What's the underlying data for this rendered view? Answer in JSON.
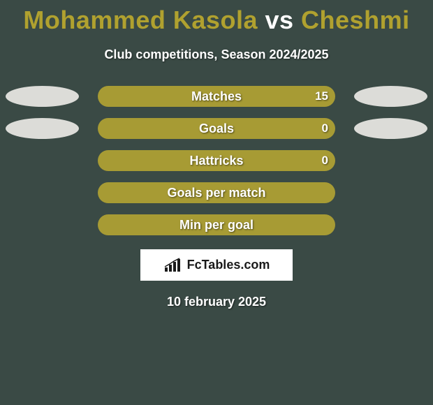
{
  "title": {
    "player1": "Mohammed Kasola",
    "vs": "vs",
    "player2": "Cheshmi",
    "player1_color": "#b0a12f",
    "vs_color": "#ffffff",
    "player2_color": "#b0a12f",
    "fontsize": 36
  },
  "subtitle": "Club competitions, Season 2024/2025",
  "bar_colors": {
    "left": "#a79b34",
    "right": "#a79b34",
    "bg": "#3a4a45"
  },
  "badge_color": "#dcdcd8",
  "rows": [
    {
      "label": "Matches",
      "left_val": "",
      "right_val": "15",
      "left_pct": 0,
      "right_pct": 100,
      "show_left_badge": true,
      "show_right_badge": true
    },
    {
      "label": "Goals",
      "left_val": "",
      "right_val": "0",
      "left_pct": 50,
      "right_pct": 50,
      "show_left_badge": true,
      "show_right_badge": true
    },
    {
      "label": "Hattricks",
      "left_val": "",
      "right_val": "0",
      "left_pct": 50,
      "right_pct": 50,
      "show_left_badge": false,
      "show_right_badge": false
    },
    {
      "label": "Goals per match",
      "left_val": "",
      "right_val": "",
      "left_pct": 50,
      "right_pct": 50,
      "show_left_badge": false,
      "show_right_badge": false
    },
    {
      "label": "Min per goal",
      "left_val": "",
      "right_val": "",
      "left_pct": 50,
      "right_pct": 50,
      "show_left_badge": false,
      "show_right_badge": false
    }
  ],
  "watermark": "FcTables.com",
  "date": "10 february 2025"
}
